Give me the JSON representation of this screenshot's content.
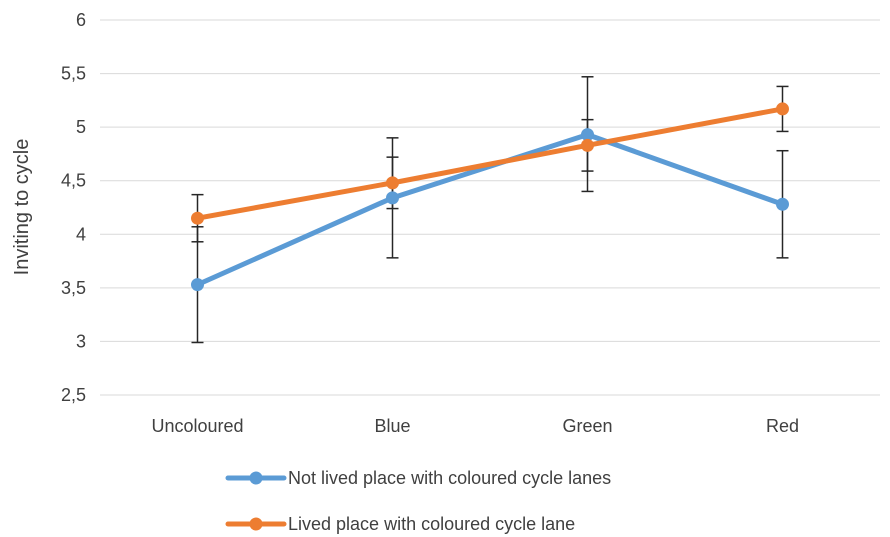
{
  "chart_data": {
    "type": "line",
    "title": "",
    "xlabel": "",
    "ylabel": "Inviting to cycle",
    "categories": [
      "Uncoloured",
      "Blue",
      "Green",
      "Red"
    ],
    "ylim": [
      2.5,
      6
    ],
    "yticks": [
      2.5,
      3,
      3.5,
      4,
      4.5,
      5,
      5.5,
      6
    ],
    "ytick_labels": [
      "2,5",
      "3",
      "3,5",
      "4",
      "4,5",
      "5",
      "5,5",
      "6"
    ],
    "grid": "horizontal",
    "legend_position": "bottom",
    "series": [
      {
        "name": "Not lived place with coloured cycle lanes",
        "color": "#5B9BD5",
        "values": [
          3.53,
          4.34,
          4.93,
          4.28
        ],
        "error_low": [
          2.99,
          3.78,
          4.4,
          3.78
        ],
        "error_high": [
          4.07,
          4.9,
          5.47,
          4.78
        ]
      },
      {
        "name": "Lived place with coloured cycle lane",
        "color": "#ED7D31",
        "values": [
          4.15,
          4.48,
          4.83,
          5.17
        ],
        "error_low": [
          3.93,
          4.24,
          4.59,
          4.96
        ],
        "error_high": [
          4.37,
          4.72,
          5.07,
          5.38
        ]
      }
    ]
  }
}
